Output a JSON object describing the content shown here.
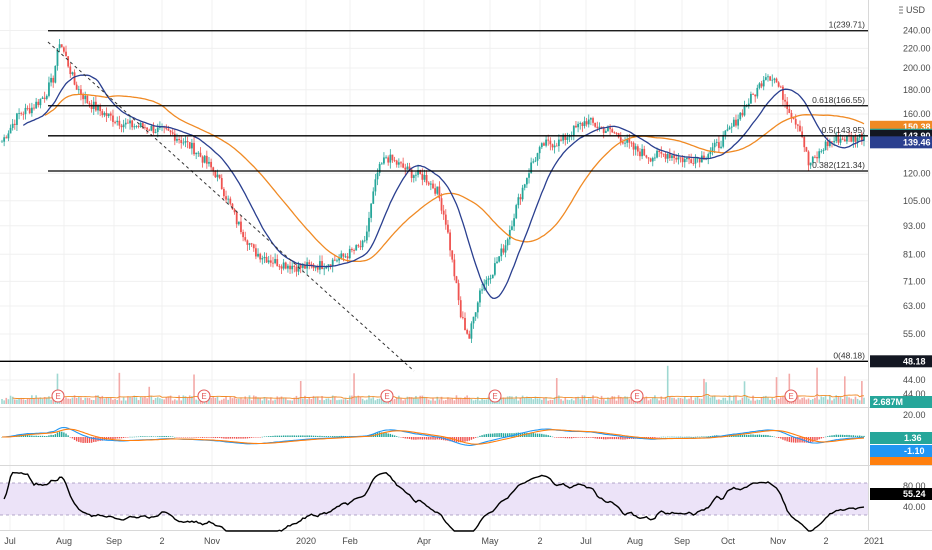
{
  "header": {
    "currency_label": "USD"
  },
  "colors": {
    "up": "#26a69a",
    "down": "#ef5350",
    "ma_fast": "#2a3f8f",
    "ma_slow": "#f08a24",
    "macd": "#2196f3",
    "signal": "#ff7f0e",
    "rsi": "#000000",
    "rsi_band": "#e9e0f7"
  },
  "chart_data": {
    "type": "candlestick",
    "price_axis": {
      "ticks": [
        "240.00",
        "220.00",
        "200.00",
        "180.00",
        "160.00",
        "140.00",
        "120.00",
        "105.00",
        "93.00",
        "81.00",
        "71.00",
        "63.00",
        "55.00",
        "44.00"
      ],
      "scale": "log",
      "range": [
        44,
        255
      ]
    },
    "time_axis": {
      "ticks": [
        "Jul",
        "Aug",
        "Sep",
        "2",
        "Nov",
        "2020",
        "Feb",
        "Apr",
        "May",
        "2",
        "Jul",
        "Aug",
        "Sep",
        "Oct",
        "Nov",
        "2",
        "2021"
      ]
    },
    "fibonacci": [
      {
        "label": "1(239.71)",
        "value": 239.71
      },
      {
        "label": "0.618(166.55)",
        "value": 166.55
      },
      {
        "label": "0.5(143.95)",
        "value": 143.95
      },
      {
        "label": "0.382(121.34)",
        "value": 121.34
      },
      {
        "label": "0(48.18)",
        "value": 48.18
      }
    ],
    "price_tags": [
      {
        "text": "150.38",
        "value": 150.38,
        "color": "#f08a24"
      },
      {
        "text": "144.73",
        "value": 144.73,
        "color": "#26a69a"
      },
      {
        "text": "143.90",
        "value": 143.9,
        "color": "#131722"
      },
      {
        "text": "139.46",
        "value": 139.46,
        "color": "#2a3f8f"
      },
      {
        "text": "48.18",
        "value": 48.18,
        "color": "#131722"
      }
    ],
    "close_anchors": [
      [
        0,
        140
      ],
      [
        8,
        160
      ],
      [
        14,
        165
      ],
      [
        20,
        175
      ],
      [
        24,
        190
      ],
      [
        27,
        228
      ],
      [
        30,
        210
      ],
      [
        34,
        185
      ],
      [
        40,
        170
      ],
      [
        48,
        160
      ],
      [
        58,
        152
      ],
      [
        68,
        150
      ],
      [
        80,
        145
      ],
      [
        90,
        135
      ],
      [
        100,
        120
      ],
      [
        110,
        95
      ],
      [
        118,
        82
      ],
      [
        128,
        78
      ],
      [
        140,
        76
      ],
      [
        150,
        77
      ],
      [
        160,
        80
      ],
      [
        170,
        85
      ],
      [
        176,
        120
      ],
      [
        180,
        130
      ],
      [
        186,
        125
      ],
      [
        192,
        120
      ],
      [
        198,
        118
      ],
      [
        204,
        110
      ],
      [
        208,
        95
      ],
      [
        211,
        78
      ],
      [
        215,
        60
      ],
      [
        219,
        54
      ],
      [
        224,
        68
      ],
      [
        230,
        75
      ],
      [
        236,
        85
      ],
      [
        242,
        105
      ],
      [
        248,
        125
      ],
      [
        254,
        138
      ],
      [
        262,
        140
      ],
      [
        268,
        148
      ],
      [
        274,
        155
      ],
      [
        280,
        150
      ],
      [
        288,
        145
      ],
      [
        296,
        135
      ],
      [
        304,
        130
      ],
      [
        312,
        132
      ],
      [
        320,
        128
      ],
      [
        328,
        130
      ],
      [
        336,
        138
      ],
      [
        342,
        150
      ],
      [
        348,
        165
      ],
      [
        354,
        180
      ],
      [
        358,
        195
      ],
      [
        362,
        190
      ],
      [
        366,
        175
      ],
      [
        370,
        160
      ],
      [
        374,
        150
      ],
      [
        378,
        125
      ],
      [
        382,
        130
      ],
      [
        386,
        138
      ],
      [
        392,
        142
      ],
      [
        398,
        142
      ],
      [
        404,
        144
      ]
    ],
    "indicators": {
      "ma_fast": "moving average (dark blue)",
      "ma_slow": "moving average (orange)",
      "volume_tag": "2.687M",
      "volume_ticks": [
        "44.00"
      ],
      "earnings_markers": [
        "E",
        "E",
        "E",
        "E",
        "E",
        "E",
        "E"
      ],
      "macd_tags": [
        "1.36",
        "-1.10",
        "-1.46"
      ],
      "macd_ticks": [
        "20.00",
        "0.00",
        "-20.00"
      ],
      "rsi_tag": "55.24",
      "rsi_ticks": [
        "80.00",
        "60.00",
        "40.00"
      ]
    }
  }
}
